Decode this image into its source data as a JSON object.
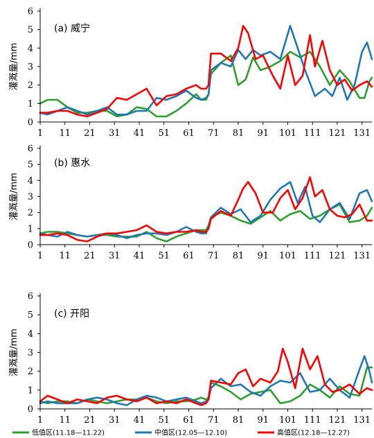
{
  "chart_data": {
    "type": "line",
    "y_label": "灌溉量/mm",
    "x_ticks": [
      1,
      11,
      21,
      31,
      41,
      51,
      61,
      71,
      81,
      91,
      101,
      111,
      121,
      131
    ],
    "x_range": [
      1,
      135
    ],
    "y_ticks": [
      0,
      1,
      2,
      3,
      4,
      5,
      6
    ],
    "y_range": [
      0,
      6
    ],
    "colors": {
      "low": "#2ca02c",
      "mid": "#1f77b4",
      "high": "#ff0000"
    },
    "legend": [
      {
        "key": "low",
        "label": "低值区(11.18—11.22)"
      },
      {
        "key": "mid",
        "label": "中值区(12.05—12.10)"
      },
      {
        "key": "high",
        "label": "高值区(12.18—12.27)"
      }
    ],
    "panels": [
      {
        "title": "(a) 威宁",
        "series": {
          "low": {
            "x": [
              1,
              4,
              8,
              12,
              16,
              20,
              24,
              28,
              32,
              36,
              40,
              44,
              48,
              52,
              56,
              60,
              64,
              66,
              68,
              69,
              70,
              74,
              78,
              81,
              84,
              87,
              90,
              94,
              98,
              102,
              106,
              110,
              114,
              118,
              122,
              126,
              130,
              132,
              134,
              135
            ],
            "y": [
              1.0,
              1.2,
              1.2,
              0.8,
              0.5,
              0.5,
              0.6,
              0.6,
              0.3,
              0.4,
              0.8,
              0.7,
              0.3,
              0.3,
              0.6,
              1.0,
              1.5,
              1.2,
              1.2,
              1.5,
              2.6,
              3.2,
              3.6,
              2.0,
              2.3,
              3.5,
              2.8,
              3.0,
              3.3,
              3.8,
              3.5,
              3.8,
              3.0,
              2.0,
              2.8,
              2.2,
              1.3,
              1.3,
              2.2,
              2.4
            ]
          },
          "mid": {
            "x": [
              1,
              4,
              8,
              12,
              16,
              20,
              24,
              28,
              32,
              36,
              40,
              44,
              48,
              52,
              56,
              60,
              64,
              66,
              68,
              69,
              70,
              74,
              78,
              81,
              84,
              87,
              90,
              94,
              98,
              102,
              105,
              108,
              112,
              116,
              119,
              122,
              125,
              128,
              131,
              133,
              135
            ],
            "y": [
              0.5,
              0.4,
              0.6,
              0.8,
              0.6,
              0.4,
              0.6,
              0.8,
              0.4,
              0.4,
              0.6,
              0.6,
              1.3,
              1.2,
              1.4,
              1.7,
              1.3,
              1.2,
              1.3,
              1.5,
              2.8,
              3.2,
              3.0,
              3.9,
              3.4,
              3.9,
              3.6,
              3.8,
              3.4,
              5.2,
              4.0,
              2.8,
              1.4,
              1.8,
              1.4,
              2.4,
              1.2,
              2.0,
              3.8,
              4.3,
              3.4
            ]
          },
          "high": {
            "x": [
              1,
              4,
              8,
              12,
              16,
              20,
              24,
              28,
              32,
              36,
              40,
              44,
              48,
              52,
              56,
              60,
              64,
              66,
              68,
              69,
              70,
              74,
              78,
              81,
              83,
              85,
              88,
              91,
              95,
              98,
              101,
              104,
              107,
              110,
              112,
              115,
              118,
              121,
              124,
              127,
              130,
              133,
              135
            ],
            "y": [
              0.5,
              0.5,
              0.6,
              0.6,
              0.4,
              0.3,
              0.5,
              0.7,
              1.3,
              1.2,
              1.5,
              1.8,
              0.9,
              1.4,
              1.5,
              1.8,
              2.0,
              1.8,
              1.8,
              2.0,
              3.7,
              3.7,
              3.3,
              4.0,
              5.2,
              4.8,
              3.4,
              3.6,
              2.5,
              1.8,
              3.6,
              2.0,
              2.5,
              4.7,
              3.0,
              4.4,
              2.8,
              2.0,
              2.3,
              1.7,
              2.0,
              2.2,
              1.9
            ]
          }
        }
      },
      {
        "title": "(b) 惠水",
        "series": {
          "low": {
            "x": [
              1,
              4,
              8,
              12,
              16,
              20,
              24,
              28,
              32,
              36,
              40,
              44,
              48,
              52,
              56,
              60,
              64,
              66,
              68,
              69,
              70,
              74,
              78,
              82,
              86,
              90,
              94,
              98,
              102,
              106,
              110,
              114,
              118,
              122,
              126,
              130,
              133,
              135
            ],
            "y": [
              0.7,
              0.8,
              0.8,
              0.7,
              0.6,
              0.5,
              0.6,
              0.6,
              0.5,
              0.5,
              0.5,
              0.8,
              0.4,
              0.2,
              0.5,
              0.7,
              0.9,
              0.9,
              0.9,
              1.2,
              1.7,
              2.0,
              1.8,
              1.5,
              1.3,
              1.7,
              2.1,
              1.5,
              1.9,
              2.1,
              1.6,
              1.8,
              2.2,
              2.5,
              1.4,
              1.5,
              1.8,
              2.3
            ]
          },
          "mid": {
            "x": [
              1,
              4,
              8,
              12,
              16,
              20,
              24,
              28,
              32,
              36,
              40,
              44,
              48,
              52,
              56,
              60,
              64,
              66,
              68,
              69,
              70,
              74,
              78,
              82,
              86,
              90,
              94,
              98,
              102,
              105,
              108,
              111,
              114,
              118,
              122,
              126,
              130,
              133,
              135
            ],
            "y": [
              0.7,
              0.6,
              0.5,
              0.8,
              0.6,
              0.5,
              0.6,
              0.7,
              0.6,
              0.4,
              0.6,
              0.7,
              0.7,
              0.6,
              0.8,
              1.1,
              0.8,
              0.7,
              0.7,
              1.1,
              1.7,
              2.3,
              1.9,
              2.2,
              1.4,
              1.8,
              2.8,
              3.5,
              3.9,
              2.6,
              3.6,
              1.8,
              1.4,
              2.2,
              2.6,
              1.6,
              3.2,
              3.4,
              2.7
            ]
          },
          "high": {
            "x": [
              1,
              4,
              8,
              12,
              16,
              20,
              24,
              28,
              32,
              36,
              40,
              44,
              48,
              52,
              56,
              60,
              64,
              66,
              68,
              69,
              70,
              74,
              78,
              81,
              83,
              85,
              88,
              91,
              95,
              98,
              101,
              104,
              107,
              110,
              112,
              115,
              118,
              121,
              124,
              127,
              130,
              133,
              135
            ],
            "y": [
              0.6,
              0.6,
              0.7,
              0.6,
              0.3,
              0.2,
              0.5,
              0.7,
              0.7,
              0.8,
              0.9,
              1.2,
              0.8,
              0.7,
              0.8,
              0.8,
              0.9,
              0.8,
              0.8,
              1.0,
              1.6,
              2.1,
              1.8,
              2.8,
              3.5,
              3.9,
              3.2,
              2.0,
              2.0,
              2.9,
              3.4,
              2.2,
              2.9,
              4.2,
              3.0,
              3.4,
              2.2,
              1.8,
              1.7,
              1.9,
              2.5,
              1.5,
              1.5
            ]
          }
        }
      },
      {
        "title": "(c) 开阳",
        "series": {
          "low": {
            "x": [
              1,
              4,
              8,
              12,
              16,
              20,
              24,
              28,
              32,
              36,
              40,
              44,
              48,
              52,
              56,
              60,
              64,
              66,
              68,
              69,
              70,
              74,
              78,
              82,
              86,
              90,
              94,
              98,
              102,
              106,
              110,
              114,
              118,
              122,
              126,
              130,
              133,
              135
            ],
            "y": [
              0.4,
              0.3,
              0.4,
              0.4,
              0.3,
              0.5,
              0.4,
              0.3,
              0.4,
              0.5,
              0.5,
              0.6,
              0.4,
              0.3,
              0.4,
              0.4,
              0.5,
              0.6,
              0.5,
              0.6,
              1.4,
              1.2,
              0.9,
              0.5,
              0.8,
              0.9,
              1.0,
              0.3,
              0.4,
              0.7,
              1.3,
              1.0,
              0.6,
              1.2,
              0.8,
              0.7,
              2.2,
              2.2
            ]
          },
          "mid": {
            "x": [
              1,
              4,
              8,
              12,
              16,
              20,
              24,
              28,
              32,
              36,
              40,
              44,
              48,
              52,
              56,
              60,
              64,
              66,
              68,
              69,
              70,
              74,
              78,
              82,
              86,
              90,
              94,
              98,
              102,
              106,
              110,
              114,
              118,
              122,
              126,
              130,
              132,
              134,
              135
            ],
            "y": [
              0.3,
              0.4,
              0.3,
              0.3,
              0.3,
              0.5,
              0.6,
              0.5,
              0.3,
              0.2,
              0.5,
              0.7,
              0.6,
              0.4,
              0.5,
              0.6,
              0.4,
              0.3,
              0.4,
              0.5,
              1.1,
              1.6,
              1.2,
              1.3,
              0.9,
              0.7,
              1.2,
              1.5,
              1.4,
              1.9,
              0.9,
              1.0,
              1.6,
              1.0,
              0.6,
              2.1,
              2.8,
              2.0,
              1.4
            ]
          },
          "high": {
            "x": [
              1,
              4,
              8,
              12,
              16,
              20,
              24,
              28,
              32,
              36,
              40,
              44,
              48,
              52,
              56,
              60,
              64,
              66,
              68,
              69,
              70,
              74,
              78,
              81,
              84,
              87,
              90,
              94,
              97,
              99,
              101,
              104,
              107,
              110,
              113,
              116,
              119,
              122,
              126,
              130,
              133,
              135
            ],
            "y": [
              0.4,
              0.7,
              0.5,
              0.3,
              0.5,
              0.4,
              0.3,
              0.6,
              0.7,
              0.5,
              0.4,
              0.6,
              0.3,
              0.4,
              0.3,
              0.5,
              0.3,
              0.2,
              0.3,
              0.5,
              1.5,
              1.4,
              1.3,
              1.9,
              2.1,
              1.2,
              1.6,
              1.4,
              2.0,
              3.2,
              2.5,
              1.1,
              3.2,
              2.1,
              2.8,
              1.3,
              0.9,
              1.0,
              1.3,
              0.8,
              1.1,
              1.0
            ]
          }
        }
      }
    ]
  }
}
